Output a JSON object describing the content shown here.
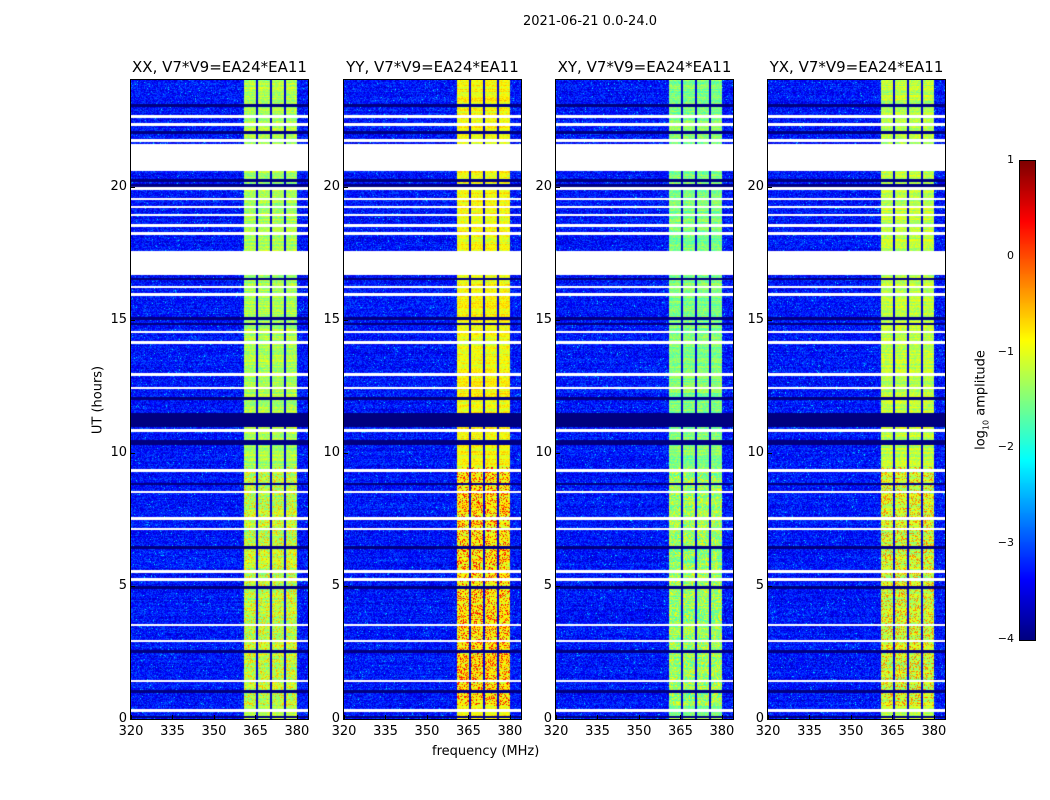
{
  "suptitle": "2021-06-21 0.0-24.0",
  "chart_data": {
    "type": "heatmap",
    "xlabel": "frequency (MHz)",
    "ylabel": "UT (hours)",
    "xlim": [
      320,
      384
    ],
    "ylim": [
      0,
      24
    ],
    "xticks": [
      320,
      335,
      350,
      365,
      380
    ],
    "yticks": [
      0,
      5,
      10,
      15,
      20
    ],
    "colormap": "jet",
    "colorbar": {
      "label": "log10 amplitude",
      "label_main": "log",
      "label_sub": "10",
      "label_rest": " amplitude",
      "range": [
        -4,
        1
      ],
      "ticks": [
        1,
        0,
        -1,
        -2,
        -3,
        -4
      ],
      "tick_labels": [
        "1",
        "0",
        "−1",
        "−2",
        "−3",
        "−4"
      ]
    },
    "background_log_amplitude": -3.3,
    "bright_band_mhz": [
      360.5,
      380
    ],
    "band_dark_channels_mhz": [
      365.5,
      370.5,
      375.5
    ],
    "flagged_hours": [
      [
        22.6,
        22.7
      ],
      [
        22.3,
        22.4
      ],
      [
        21.7,
        21.8
      ],
      [
        20.6,
        21.6
      ],
      [
        16.7,
        17.6
      ],
      [
        16.2,
        16.3
      ],
      [
        15.9,
        16.0
      ],
      [
        14.5,
        14.6
      ],
      [
        14.1,
        14.2
      ],
      [
        12.9,
        13.0
      ],
      [
        12.4,
        12.5
      ],
      [
        10.8,
        10.9
      ],
      [
        9.3,
        9.4
      ],
      [
        8.5,
        8.6
      ],
      [
        7.5,
        7.6
      ],
      [
        7.1,
        7.2
      ],
      [
        5.5,
        5.6
      ],
      [
        5.2,
        5.3
      ],
      [
        3.5,
        3.6
      ],
      [
        2.9,
        3.0
      ],
      [
        1.4,
        1.5
      ],
      [
        0.3,
        0.4
      ],
      [
        19.9,
        20.0
      ],
      [
        19.5,
        19.6
      ],
      [
        19.2,
        19.3
      ],
      [
        18.9,
        19.0
      ],
      [
        18.5,
        18.6
      ],
      [
        18.2,
        18.3
      ]
    ],
    "dark_hours": [
      [
        23.0,
        23.1
      ],
      [
        22.0,
        22.1
      ],
      [
        20.2,
        20.3
      ],
      [
        20.0,
        20.1
      ],
      [
        16.5,
        16.6
      ],
      [
        15.0,
        15.1
      ],
      [
        14.8,
        14.9
      ],
      [
        12.0,
        12.1
      ],
      [
        11.0,
        11.5
      ],
      [
        10.3,
        10.5
      ],
      [
        8.8,
        8.9
      ],
      [
        6.4,
        6.5
      ],
      [
        4.9,
        5.0
      ],
      [
        2.5,
        2.6
      ],
      [
        1.0,
        1.1
      ],
      [
        0.05,
        0.15
      ]
    ],
    "panels": [
      {
        "title": "XX, V7*V9=EA24*EA11",
        "band_log_amplitude": -1.3,
        "peak_log_amplitude": -0.6
      },
      {
        "title": "YY, V7*V9=EA24*EA11",
        "band_log_amplitude": -0.9,
        "peak_log_amplitude": 0.2
      },
      {
        "title": "XY, V7*V9=EA24*EA11",
        "band_log_amplitude": -1.5,
        "peak_log_amplitude": -0.9
      },
      {
        "title": "YX, V7*V9=EA24*EA11",
        "band_log_amplitude": -1.2,
        "peak_log_amplitude": -0.3
      }
    ]
  }
}
